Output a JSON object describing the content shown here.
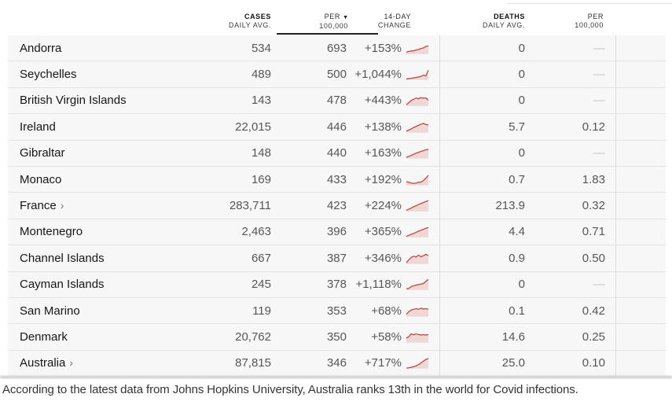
{
  "header": {
    "cases_line1": "CASES",
    "cases_line2": "DAILY AVG.",
    "per_line1": "PER",
    "sort_icon": "▼",
    "per_line2": "100,000",
    "change_line1": "14-DAY",
    "change_line2": "CHANGE",
    "deaths_line1": "DEATHS",
    "deaths_line2": "DAILY AVG.",
    "per2_line1": "PER",
    "per2_line2": "100,000"
  },
  "colors": {
    "spark_line": "#b0413a",
    "spark_fill": "#f0d7d5",
    "sort_underline": "#222222"
  },
  "table": {
    "dash_glyph": "—",
    "rows": [
      {
        "name": "Andorra",
        "chevron": "",
        "cases": "534",
        "per100k": "693",
        "change": "+153%",
        "deaths": "0",
        "deaths_per100k": "—",
        "spark": [
          0.18,
          0.24,
          0.28,
          0.3,
          0.38,
          0.42,
          0.52,
          0.56,
          0.7,
          0.74
        ]
      },
      {
        "name": "Seychelles",
        "chevron": "",
        "cases": "489",
        "per100k": "500",
        "change": "+1,044%",
        "deaths": "0",
        "deaths_per100k": "—",
        "spark": [
          0.1,
          0.13,
          0.16,
          0.2,
          0.24,
          0.28,
          0.33,
          0.45,
          0.38,
          0.9
        ]
      },
      {
        "name": "British Virgin Islands",
        "chevron": "",
        "cases": "143",
        "per100k": "478",
        "change": "+443%",
        "deaths": "0",
        "deaths_per100k": "—",
        "spark": [
          0.12,
          0.3,
          0.5,
          0.62,
          0.72,
          0.66,
          0.76,
          0.72,
          0.74,
          0.52
        ]
      },
      {
        "name": "Ireland",
        "chevron": "",
        "cases": "22,015",
        "per100k": "446",
        "change": "+138%",
        "deaths": "5.7",
        "deaths_per100k": "0.12",
        "spark": [
          0.15,
          0.25,
          0.35,
          0.48,
          0.58,
          0.68,
          0.78,
          0.85,
          0.74,
          0.72
        ]
      },
      {
        "name": "Gibraltar",
        "chevron": "",
        "cases": "148",
        "per100k": "440",
        "change": "+163%",
        "deaths": "0",
        "deaths_per100k": "—",
        "spark": [
          0.12,
          0.2,
          0.3,
          0.4,
          0.5,
          0.58,
          0.66,
          0.74,
          0.8,
          0.86
        ]
      },
      {
        "name": "Monaco",
        "chevron": "",
        "cases": "169",
        "per100k": "433",
        "change": "+192%",
        "deaths": "0.7",
        "deaths_per100k": "1.83",
        "spark": [
          0.35,
          0.28,
          0.22,
          0.18,
          0.22,
          0.28,
          0.3,
          0.45,
          0.65,
          0.92
        ]
      },
      {
        "name": "France",
        "chevron": "›",
        "cases": "283,711",
        "per100k": "423",
        "change": "+224%",
        "deaths": "213.9",
        "deaths_per100k": "0.32",
        "spark": [
          0.1,
          0.2,
          0.3,
          0.42,
          0.52,
          0.62,
          0.72,
          0.8,
          0.9,
          0.97
        ]
      },
      {
        "name": "Montenegro",
        "chevron": "",
        "cases": "2,463",
        "per100k": "396",
        "change": "+365%",
        "deaths": "4.4",
        "deaths_per100k": "0.71",
        "spark": [
          0.1,
          0.18,
          0.28,
          0.36,
          0.46,
          0.56,
          0.64,
          0.74,
          0.82,
          0.9
        ]
      },
      {
        "name": "Channel Islands",
        "chevron": "",
        "cases": "667",
        "per100k": "387",
        "change": "+346%",
        "deaths": "0.9",
        "deaths_per100k": "0.50",
        "spark": [
          0.12,
          0.38,
          0.6,
          0.72,
          0.64,
          0.82,
          0.66,
          0.76,
          0.88,
          0.78
        ]
      },
      {
        "name": "Cayman Islands",
        "chevron": "",
        "cases": "245",
        "per100k": "378",
        "change": "+1,118%",
        "deaths": "0",
        "deaths_per100k": "—",
        "spark": [
          0.1,
          0.14,
          0.32,
          0.38,
          0.44,
          0.5,
          0.54,
          0.6,
          0.78,
          0.97
        ]
      },
      {
        "name": "San Marino",
        "chevron": "",
        "cases": "119",
        "per100k": "353",
        "change": "+68%",
        "deaths": "0.1",
        "deaths_per100k": "0.42",
        "spark": [
          0.22,
          0.45,
          0.62,
          0.68,
          0.74,
          0.68,
          0.78,
          0.7,
          0.74,
          0.68
        ]
      },
      {
        "name": "Denmark",
        "chevron": "",
        "cases": "20,762",
        "per100k": "350",
        "change": "+58%",
        "deaths": "14.6",
        "deaths_per100k": "0.25",
        "spark": [
          0.42,
          0.55,
          0.8,
          0.72,
          0.8,
          0.74,
          0.7,
          0.73,
          0.7,
          0.73
        ]
      },
      {
        "name": "Australia",
        "chevron": "›",
        "cases": "87,815",
        "per100k": "346",
        "change": "+717%",
        "deaths": "25.0",
        "deaths_per100k": "0.10",
        "spark": [
          0.05,
          0.08,
          0.12,
          0.18,
          0.26,
          0.38,
          0.52,
          0.68,
          0.84,
          0.93
        ]
      }
    ]
  },
  "caption": "According to the latest data from Johns Hopkins University, Australia ranks 13th in the world for Covid infections."
}
